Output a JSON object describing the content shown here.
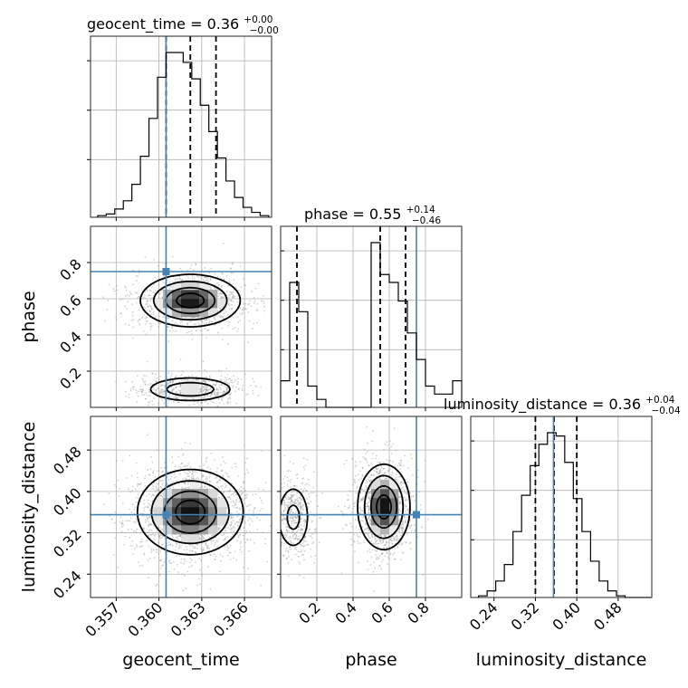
{
  "colors": {
    "truth": "#4682b4",
    "line": "#000000",
    "grid": "#b0b0b0",
    "samples": "#9a9a9a",
    "density_max": "#000000"
  },
  "chart_data": {
    "type": "corner",
    "parameters": [
      "geocent_time",
      "phase",
      "luminosity_distance"
    ],
    "truths": {
      "geocent_time": 0.3605,
      "phase": 0.75,
      "luminosity_distance": 0.355
    },
    "axes": {
      "geocent_time": {
        "label": "geocent_time",
        "range": [
          0.3552,
          0.3679
        ],
        "ticks": [
          0.357,
          0.36,
          0.363,
          0.366
        ],
        "tick_labels": [
          "0.357",
          "0.360",
          "0.363",
          "0.366"
        ]
      },
      "phase": {
        "label": "phase",
        "range": [
          0.0,
          1.0
        ],
        "ticks": [
          0.2,
          0.4,
          0.6,
          0.8
        ],
        "tick_labels": [
          "0.2",
          "0.4",
          "0.6",
          "0.8"
        ]
      },
      "luminosity_distance": {
        "label": "luminosity_distance",
        "range": [
          0.195,
          0.545
        ],
        "ticks": [
          0.24,
          0.32,
          0.4,
          0.48
        ],
        "tick_labels": [
          "0.24",
          "0.32",
          "0.40",
          "0.48"
        ]
      }
    },
    "marginals": [
      {
        "parameter": "geocent_time",
        "title": {
          "prefix": "geocent_time = 0.36",
          "plus": "+0.00",
          "minus": "−0.00"
        },
        "quantiles": [
          0.3605,
          0.3622,
          0.364
        ],
        "bin_edges": [
          0.3557,
          0.3563,
          0.3569,
          0.3575,
          0.3581,
          0.3587,
          0.3593,
          0.3599,
          0.3605,
          0.3611,
          0.3617,
          0.3623,
          0.3629,
          0.3635,
          0.3641,
          0.3647,
          0.3653,
          0.3659,
          0.3665,
          0.3671,
          0.3677
        ],
        "counts": [
          1,
          2,
          5,
          10,
          20,
          37,
          60,
          85,
          100,
          100,
          94,
          84,
          68,
          52,
          36,
          22,
          12,
          6,
          3,
          1
        ]
      },
      {
        "parameter": "phase",
        "title": {
          "prefix": "phase = 0.55",
          "plus": "+0.14",
          "minus": "−0.46"
        },
        "quantiles": [
          0.09,
          0.55,
          0.69
        ],
        "bin_edges": [
          0.0,
          0.05,
          0.1,
          0.15,
          0.2,
          0.25,
          0.3,
          0.35,
          0.4,
          0.45,
          0.5,
          0.55,
          0.6,
          0.65,
          0.7,
          0.75,
          0.8,
          0.85,
          0.9,
          0.95,
          1.0
        ],
        "counts": [
          10,
          47,
          36,
          8,
          3,
          0,
          0,
          0,
          0,
          0,
          62,
          50,
          47,
          40,
          28,
          18,
          8,
          5,
          5,
          10
        ]
      },
      {
        "parameter": "luminosity_distance",
        "title": {
          "prefix": "luminosity_distance = 0.36",
          "plus": "+0.04",
          "minus": "−0.04"
        },
        "quantiles": [
          0.32,
          0.356,
          0.4
        ],
        "bin_edges": [
          0.21,
          0.2267,
          0.2433,
          0.26,
          0.2767,
          0.2933,
          0.31,
          0.3267,
          0.3433,
          0.36,
          0.3767,
          0.3933,
          0.41,
          0.4267,
          0.4433,
          0.46,
          0.4767,
          0.4933,
          0.51,
          0.5267,
          0.5433
        ],
        "counts": [
          1,
          4,
          10,
          20,
          40,
          62,
          80,
          93,
          100,
          98,
          82,
          60,
          40,
          22,
          10,
          4,
          1,
          0,
          0,
          0
        ]
      }
    ],
    "joints": [
      {
        "x": "geocent_time",
        "y": "phase",
        "modes": [
          {
            "center": [
              0.3622,
              0.59
            ],
            "sigma": [
              0.0017,
              0.07
            ],
            "weight": 1.0
          },
          {
            "center": [
              0.3622,
              0.1
            ],
            "sigma": [
              0.0016,
              0.035
            ],
            "weight": 0.55
          }
        ]
      },
      {
        "x": "geocent_time",
        "y": "luminosity_distance",
        "modes": [
          {
            "center": [
              0.3622,
              0.36
            ],
            "sigma": [
              0.0018,
              0.04
            ],
            "weight": 1.0
          }
        ]
      },
      {
        "x": "phase",
        "y": "luminosity_distance",
        "modes": [
          {
            "center": [
              0.57,
              0.37
            ],
            "sigma": [
              0.07,
              0.04
            ],
            "weight": 1.0
          },
          {
            "center": [
              0.07,
              0.35
            ],
            "sigma": [
              0.05,
              0.035
            ],
            "weight": 0.4
          }
        ]
      }
    ]
  }
}
